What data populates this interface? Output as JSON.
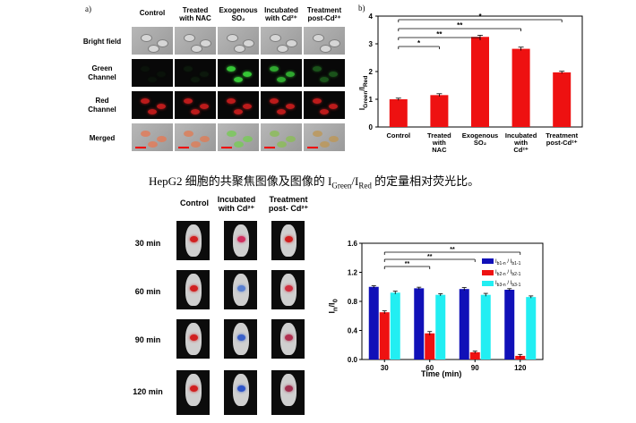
{
  "panel_a": {
    "label": "a)",
    "columns": [
      {
        "l1": "Control",
        "l2": ""
      },
      {
        "l1": "Treated",
        "l2": "with NAC"
      },
      {
        "l1": "Exogenous",
        "l2": "SO₂"
      },
      {
        "l1": "Incubated",
        "l2": "with Cd²⁺"
      },
      {
        "l1": "Treatment",
        "l2": "post-Cd²⁺"
      }
    ],
    "rows": [
      {
        "l1": "Bright field",
        "l2": ""
      },
      {
        "l1": "Green",
        "l2": "Channel"
      },
      {
        "l1": "Red",
        "l2": "Channel"
      },
      {
        "l1": "Merged",
        "l2": ""
      }
    ],
    "green_intensity": [
      0.05,
      0.08,
      0.9,
      0.75,
      0.35
    ]
  },
  "panel_b": {
    "label": "b)",
    "ylabel_main": "I",
    "ylabel_sub": "Green",
    "ylabel_sep": "/I",
    "ylabel_sub2": "Red",
    "bar_color": "#ee1111"
  },
  "caption": {
    "prefix": "HepG2 细胞的共聚焦图像及图像的 I",
    "sub1": "Green",
    "mid": "/I",
    "sub2": "Red",
    "suffix": " 的定量相对荧光比。"
  },
  "panel_c": {
    "columns": [
      {
        "l1": "Control",
        "l2": ""
      },
      {
        "l1": "Incubated",
        "l2": "with Cd²⁺"
      },
      {
        "l1": "Treatment",
        "l2": "post- Cd²⁺"
      }
    ],
    "rows": [
      "30 min",
      "60 min",
      "90 min",
      "120 min"
    ]
  },
  "panel_d": {
    "xlabel": "Time (min)",
    "ylabel_main": "I",
    "ylabel_sub": "n",
    "ylabel_sep": "/I",
    "ylabel_sub2": "0",
    "legend": [
      {
        "text": "I",
        "sub": "b1-n",
        "mid": " / I",
        "sub2": "b1-1",
        "color": "#1010b8"
      },
      {
        "text": "I",
        "sub": "b2-n",
        "mid": " / I",
        "sub2": "b2-1",
        "color": "#ee1111"
      },
      {
        "text": "I",
        "sub": "b3-n",
        "mid": " / I",
        "sub2": "b3-1",
        "color": "#22eef2"
      }
    ]
  },
  "chart_data": [
    {
      "type": "bar",
      "categories": [
        "Control",
        "Treated with NAC",
        "Exogenous SO₂",
        "Incubated with Cd²⁺",
        "Treatment post-Cd²⁺"
      ],
      "values": [
        1.0,
        1.15,
        3.25,
        2.82,
        1.97
      ],
      "errors": [
        0.04,
        0.05,
        0.06,
        0.06,
        0.04
      ],
      "ylim": [
        0,
        4
      ],
      "yticks": [
        0,
        1,
        2,
        3,
        4
      ],
      "significance": [
        {
          "from": 0,
          "to": 1,
          "label": "*"
        },
        {
          "from": 0,
          "to": 2,
          "label": "**"
        },
        {
          "from": 0,
          "to": 3,
          "label": "**"
        },
        {
          "from": 0,
          "to": 4,
          "label": "*"
        }
      ]
    },
    {
      "type": "bar",
      "categories": [
        "30",
        "60",
        "90",
        "120"
      ],
      "series": [
        {
          "name": "Ib1-n / Ib1-1",
          "values": [
            1.0,
            0.98,
            0.97,
            0.96
          ],
          "errors": [
            0.015,
            0.015,
            0.02,
            0.015
          ]
        },
        {
          "name": "Ib2-n / Ib2-1",
          "values": [
            0.65,
            0.36,
            0.1,
            0.05
          ],
          "errors": [
            0.02,
            0.025,
            0.015,
            0.02
          ]
        },
        {
          "name": "Ib3-n / Ib3-1",
          "values": [
            0.92,
            0.89,
            0.89,
            0.86
          ],
          "errors": [
            0.02,
            0.015,
            0.02,
            0.015
          ]
        }
      ],
      "ylim": [
        0,
        1.6
      ],
      "yticks": [
        "0.0",
        "0.4",
        "0.8",
        "1.2",
        "1.6"
      ],
      "significance": [
        {
          "from": 0,
          "to": 1,
          "label": "**"
        },
        {
          "from": 0,
          "to": 2,
          "label": "**"
        },
        {
          "from": 0,
          "to": 3,
          "label": "**"
        }
      ]
    }
  ]
}
